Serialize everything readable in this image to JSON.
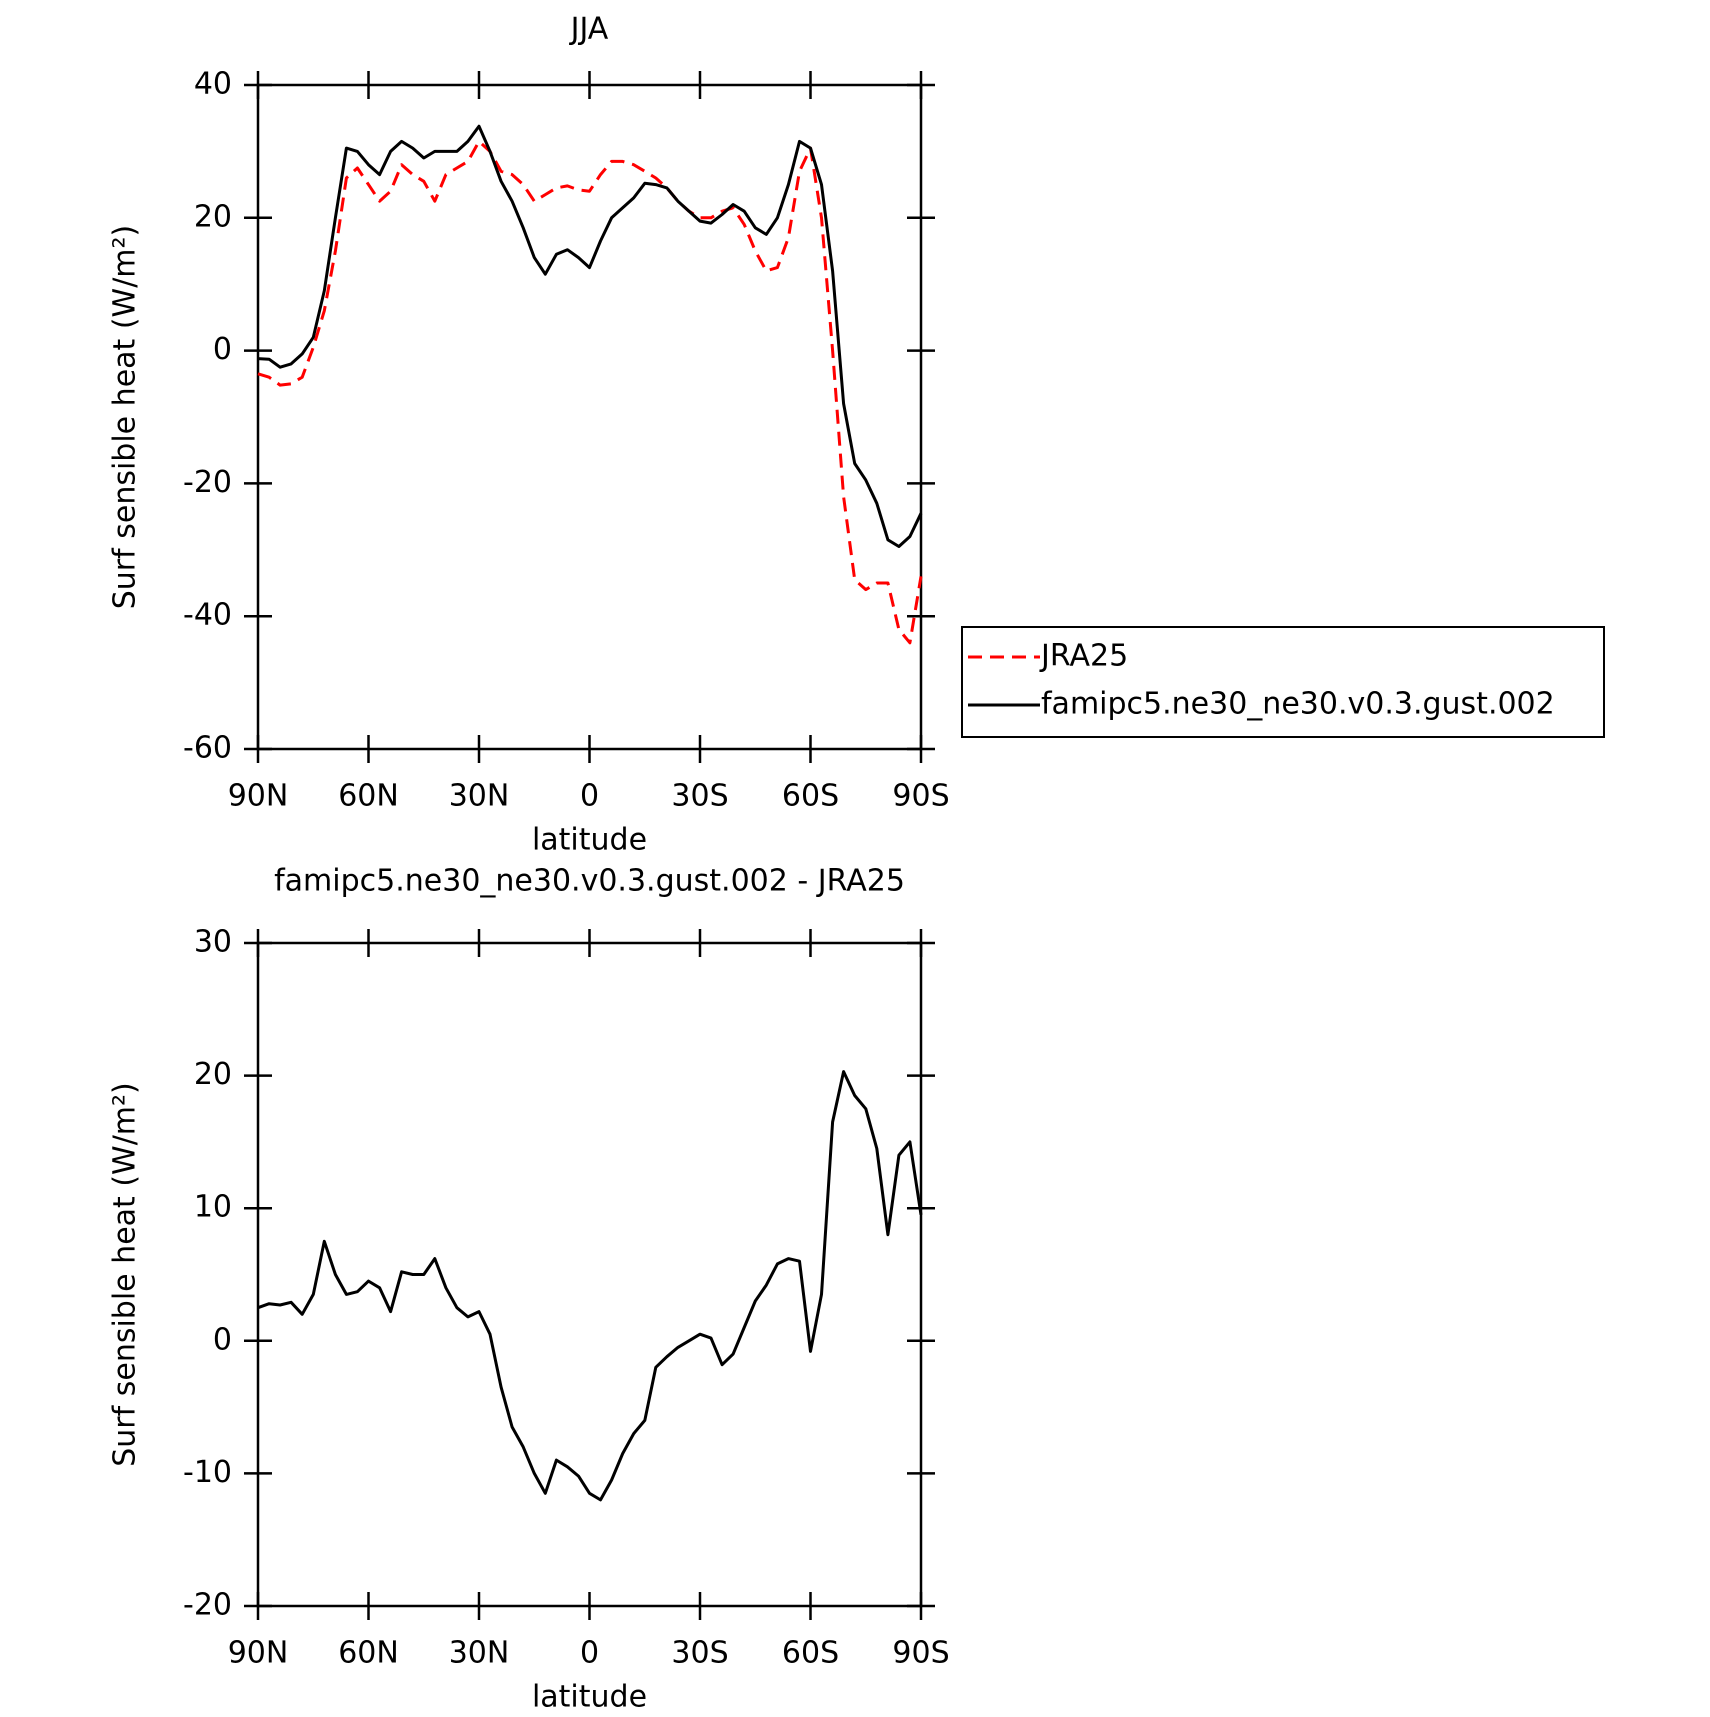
{
  "chart_data": [
    {
      "type": "line",
      "title": "JJA",
      "xlabel": "latitude",
      "ylabel": "Surf sensible heat (W/m²)",
      "x": [
        90,
        87,
        84,
        81,
        78,
        75,
        72,
        69,
        66,
        63,
        60,
        57,
        54,
        51,
        48,
        45,
        42,
        39,
        36,
        33,
        30,
        27,
        24,
        21,
        18,
        15,
        12,
        9,
        6,
        3,
        0,
        -3,
        -6,
        -9,
        -12,
        -15,
        -18,
        -21,
        -24,
        -27,
        -30,
        -33,
        -36,
        -39,
        -42,
        -45,
        -48,
        -51,
        -54,
        -57,
        -60,
        -63,
        -66,
        -69,
        -72,
        -75,
        -78,
        -81,
        -84,
        -87,
        -90
      ],
      "series": [
        {
          "name": "JRA25",
          "color": "#ff0000",
          "style": "dashed",
          "values": [
            -3.5,
            -4,
            -5.2,
            -5,
            -4,
            0.5,
            6,
            15,
            26,
            27.5,
            25,
            22.5,
            24,
            28,
            26.5,
            25.5,
            22.5,
            26.5,
            27.5,
            28.5,
            31.5,
            30,
            27,
            26.5,
            25,
            22.5,
            23.5,
            24.5,
            24.8,
            24.2,
            24,
            26.5,
            28.5,
            28.5,
            28,
            27,
            26,
            24.5,
            22.5,
            21,
            20,
            20,
            21,
            21.5,
            19,
            15,
            12,
            12.5,
            17,
            27,
            30.5,
            20,
            0,
            -22,
            -34.5,
            -36,
            -35,
            -35,
            -42,
            -44,
            -34
          ]
        },
        {
          "name": "famipc5.ne30_ne30.v0.3.gust.002",
          "color": "#000000",
          "style": "solid",
          "values": [
            -1.2,
            -1.3,
            -2.5,
            -2,
            -0.5,
            2,
            9,
            20,
            30.5,
            30,
            28,
            26.5,
            30,
            31.5,
            30.5,
            29,
            30,
            30,
            30,
            31.5,
            33.8,
            30,
            25.5,
            22.5,
            18.5,
            14,
            11.5,
            14.5,
            15.2,
            14,
            12.5,
            16.5,
            20,
            21.5,
            23,
            25.2,
            25,
            24.5,
            22.5,
            21,
            19.5,
            19.2,
            20.5,
            22,
            21,
            18.5,
            17.5,
            20,
            25,
            31.5,
            30.5,
            25,
            12,
            -8,
            -17,
            -19.5,
            -23,
            -28.5,
            -29.5,
            -28,
            -24.5
          ]
        }
      ],
      "xlim": [
        90,
        -90
      ],
      "xticks": [
        {
          "value": 90,
          "label": "90N"
        },
        {
          "value": 60,
          "label": "60N"
        },
        {
          "value": 30,
          "label": "30N"
        },
        0,
        {
          "value": -30,
          "label": "30S"
        },
        {
          "value": -60,
          "label": "60S"
        },
        {
          "value": -90,
          "label": "90S"
        }
      ],
      "ylim": [
        -60,
        40
      ],
      "yticks": [
        -60,
        -40,
        -20,
        0,
        20,
        40
      ],
      "legend": "right"
    },
    {
      "type": "line",
      "title": "famipc5.ne30_ne30.v0.3.gust.002 - JRA25",
      "xlabel": "latitude",
      "ylabel": "Surf sensible heat (W/m²)",
      "x": [
        90,
        87,
        84,
        81,
        78,
        75,
        72,
        69,
        66,
        63,
        60,
        57,
        54,
        51,
        48,
        45,
        42,
        39,
        36,
        33,
        30,
        27,
        24,
        21,
        18,
        15,
        12,
        9,
        6,
        3,
        0,
        -3,
        -6,
        -9,
        -12,
        -15,
        -18,
        -21,
        -24,
        -27,
        -30,
        -33,
        -36,
        -39,
        -42,
        -45,
        -48,
        -51,
        -54,
        -57,
        -60,
        -63,
        -66,
        -69,
        -72,
        -75,
        -78,
        -81,
        -84,
        -87,
        -90
      ],
      "series": [
        {
          "color": "#000000",
          "style": "solid",
          "values": [
            2.5,
            2.8,
            2.7,
            2.9,
            2,
            3.5,
            7.5,
            5,
            3.5,
            3.7,
            4.5,
            4,
            2.2,
            5.2,
            5,
            5,
            6.2,
            4,
            2.5,
            1.8,
            2.2,
            0.5,
            -3.5,
            -6.5,
            -8,
            -10,
            -11.5,
            -9,
            -9.5,
            -10.2,
            -11.5,
            -12,
            -10.5,
            -8.5,
            -7,
            -6,
            -2,
            -1.2,
            -0.5,
            0,
            0.5,
            0.2,
            -1.8,
            -1,
            1,
            3,
            4.2,
            5.8,
            6.2,
            6,
            -0.8,
            3.5,
            16.5,
            20.3,
            18.5,
            17.5,
            14.5,
            8,
            14,
            15,
            9.5
          ]
        }
      ],
      "xlim": [
        90,
        -90
      ],
      "xticks": [
        {
          "value": 90,
          "label": "90N"
        },
        {
          "value": 60,
          "label": "60N"
        },
        {
          "value": 30,
          "label": "30N"
        },
        0,
        {
          "value": -30,
          "label": "30S"
        },
        {
          "value": -60,
          "label": "60S"
        },
        {
          "value": -90,
          "label": "90S"
        }
      ],
      "ylim": [
        -20,
        30
      ],
      "yticks": [
        -20,
        -10,
        0,
        10,
        20,
        30
      ]
    }
  ]
}
